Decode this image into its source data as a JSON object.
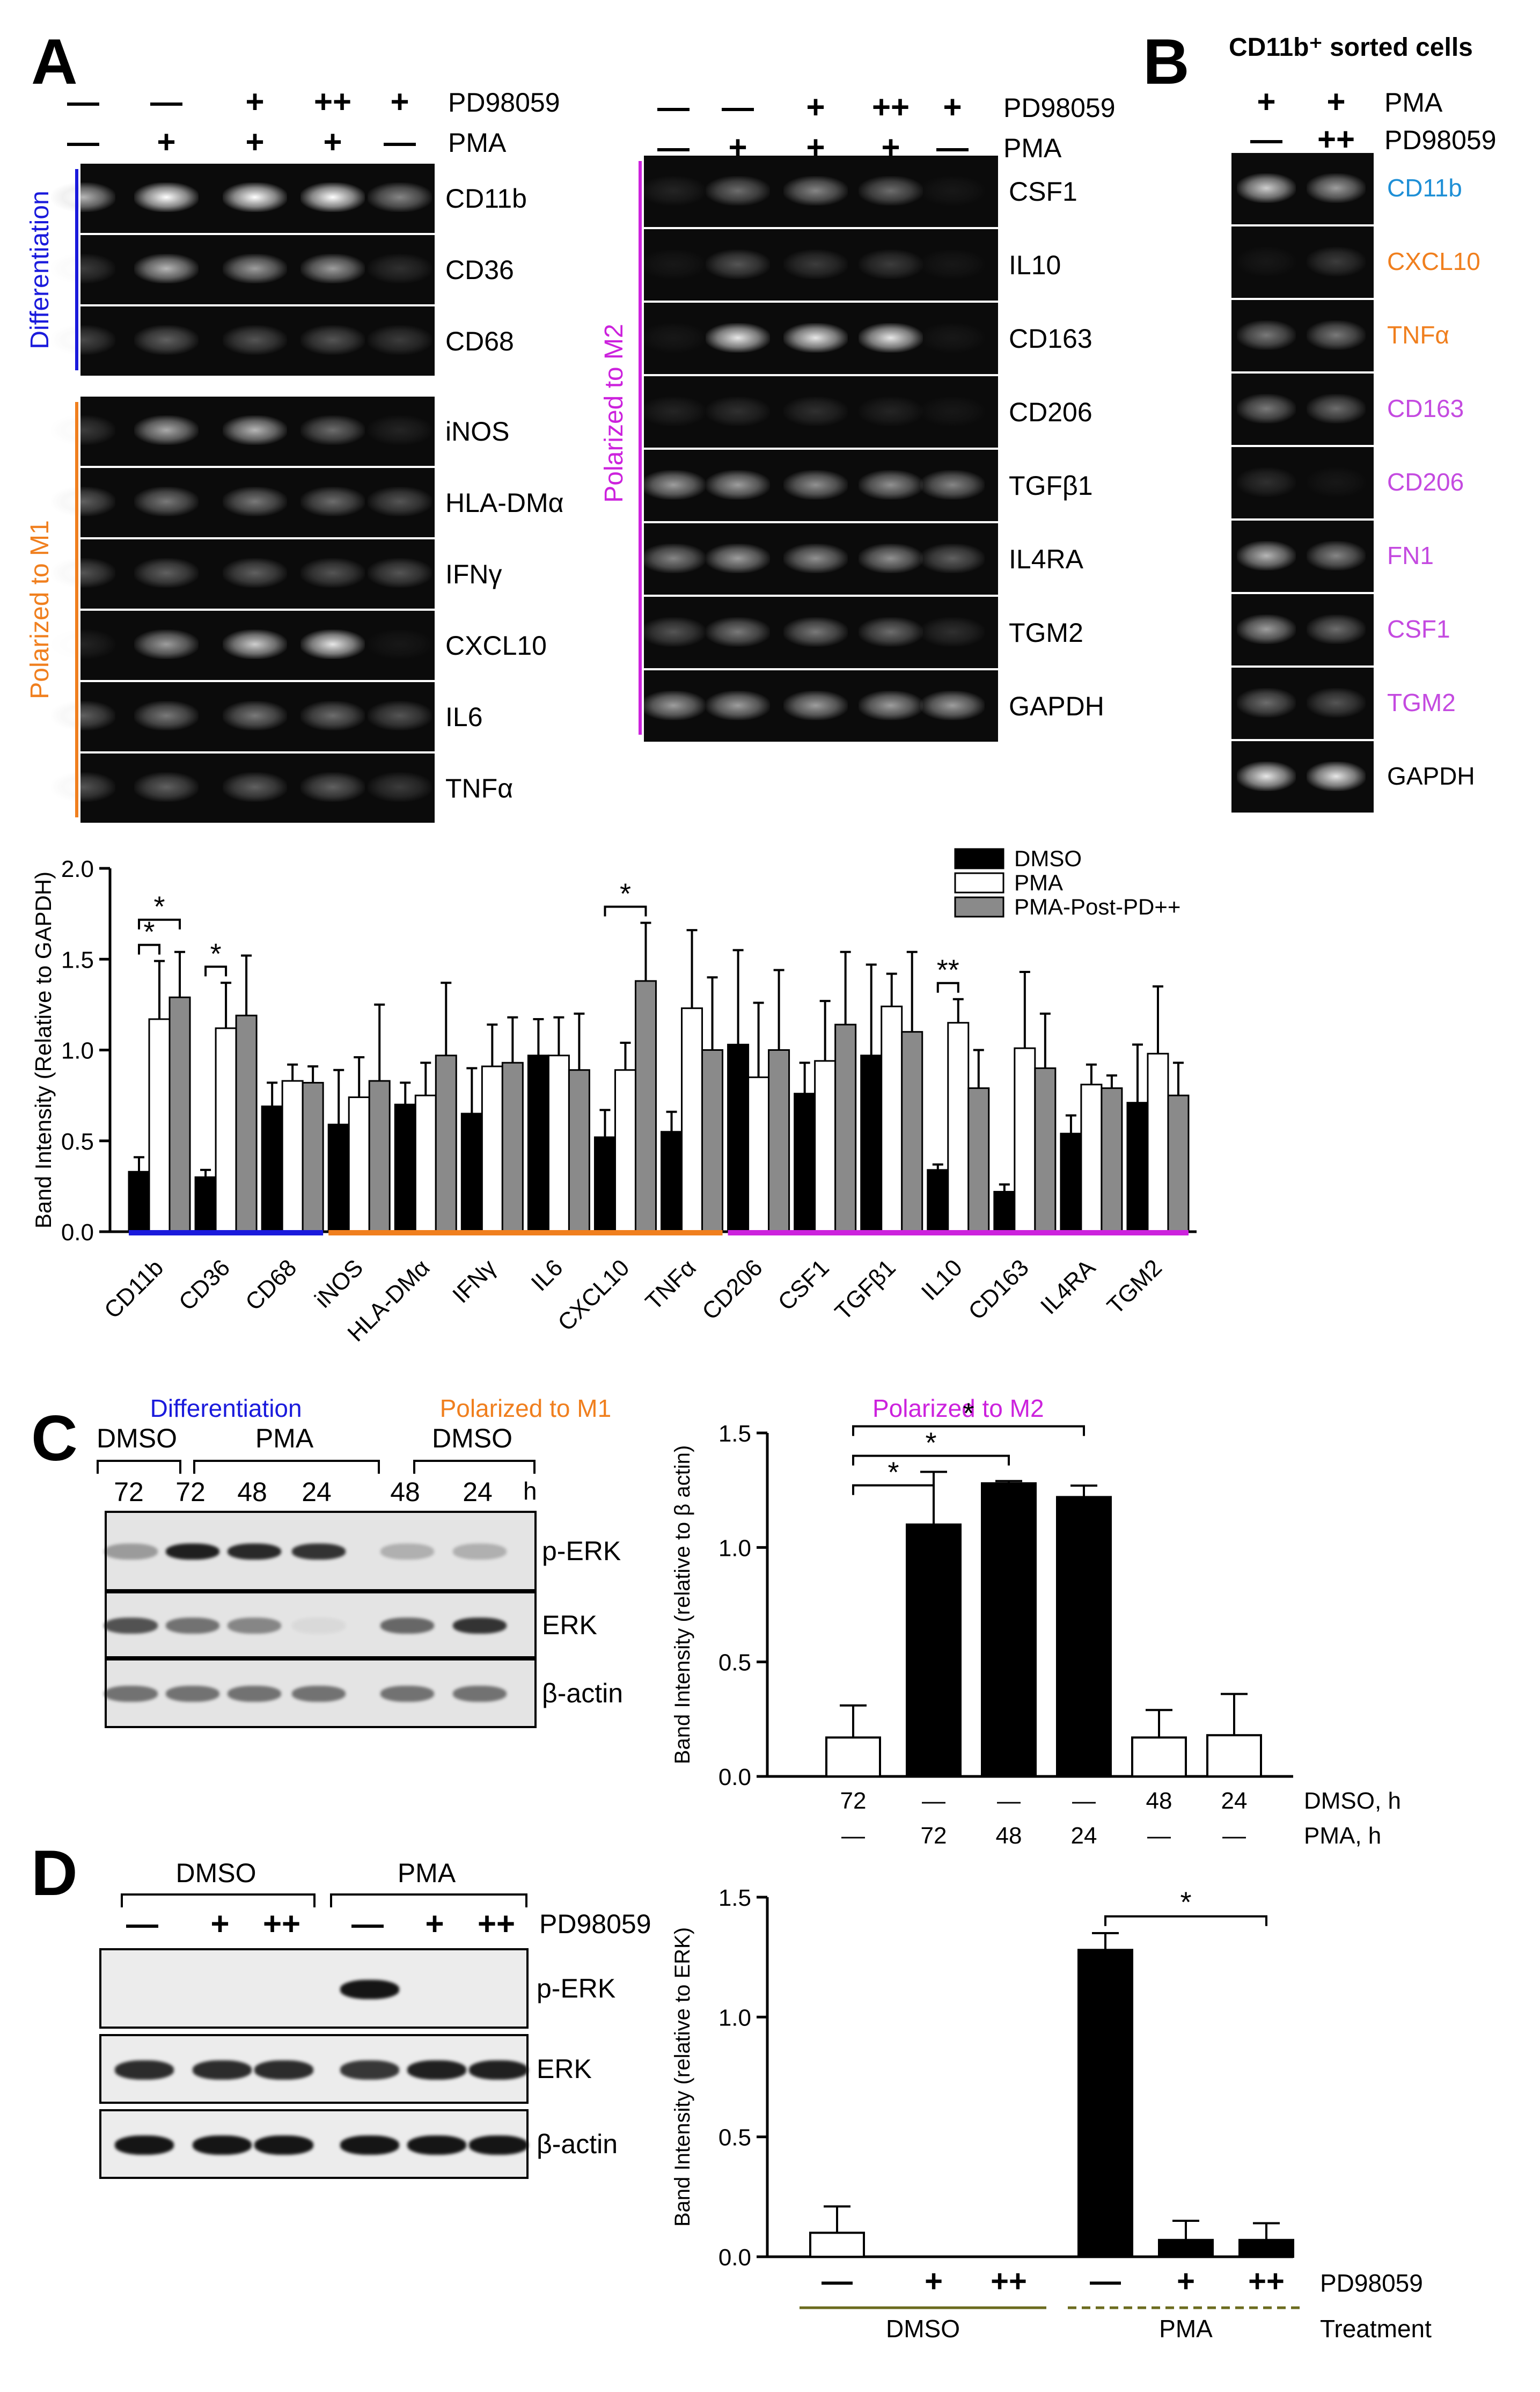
{
  "panels": {
    "A": {
      "label": "A",
      "gel_left": {
        "header_rows": [
          {
            "name": "PD98059",
            "marks": [
              "—",
              "—",
              "+",
              "++",
              "+"
            ]
          },
          {
            "name": "PMA",
            "marks": [
              "—",
              "+",
              "+",
              "+",
              "—"
            ]
          }
        ],
        "groups": [
          {
            "title": "Differentiation",
            "color": "#1a1adc",
            "genes": [
              "CD11b",
              "CD36",
              "CD68"
            ]
          },
          {
            "title": "Polarized to M1",
            "color": "#f07f1e",
            "genes": [
              "iNOS",
              "HLA-DMα",
              "IFNγ",
              "CXCL10",
              "IL6",
              "TNFα"
            ]
          }
        ]
      },
      "gel_right": {
        "header_rows": [
          {
            "name": "PD98059",
            "marks": [
              "—",
              "—",
              "+",
              "++",
              "+"
            ]
          },
          {
            "name": "PMA",
            "marks": [
              "—",
              "+",
              "+",
              "+",
              "—"
            ]
          }
        ],
        "group": {
          "title": "Polarized to M2",
          "color": "#cc22dd",
          "genes": [
            "CSF1",
            "IL10",
            "CD163",
            "CD206",
            "TGFβ1",
            "IL4RA",
            "TGM2"
          ]
        },
        "control": "GAPDH"
      }
    },
    "B": {
      "label": "B",
      "title": "CD11b⁺ sorted cells",
      "header_rows": [
        {
          "name": "PMA",
          "marks": [
            "+",
            "+"
          ]
        },
        {
          "name": "PD98059",
          "marks": [
            "—",
            "++"
          ]
        }
      ],
      "genes": [
        {
          "name": "CD11b",
          "color": "#1e8fd6"
        },
        {
          "name": "CXCL10",
          "color": "#f07f1e"
        },
        {
          "name": "TNFα",
          "color": "#f07f1e"
        },
        {
          "name": "CD163",
          "color": "#c44ae0"
        },
        {
          "name": "CD206",
          "color": "#c44ae0"
        },
        {
          "name": "FN1",
          "color": "#c44ae0"
        },
        {
          "name": "CSF1",
          "color": "#c44ae0"
        },
        {
          "name": "TGM2",
          "color": "#c44ae0"
        },
        {
          "name": "GAPDH",
          "color": "#000000"
        }
      ]
    },
    "C": {
      "label": "C",
      "blot_groups": [
        {
          "name": "DMSO",
          "times": [
            "72"
          ]
        },
        {
          "name": "PMA",
          "times": [
            "72",
            "48",
            "24"
          ]
        },
        {
          "name": "DMSO",
          "times": [
            "48",
            "24"
          ]
        }
      ],
      "time_unit": "h",
      "rows": [
        "p-ERK",
        "ERK",
        "β-actin"
      ]
    },
    "D": {
      "label": "D",
      "blot_groups": [
        {
          "name": "DMSO",
          "marks": [
            "—",
            "+",
            "++"
          ]
        },
        {
          "name": "PMA",
          "marks": [
            "—",
            "+",
            "++"
          ]
        }
      ],
      "row_label": "PD98059",
      "rows": [
        "p-ERK",
        "ERK",
        "β-actin"
      ]
    }
  },
  "chart_data": [
    {
      "id": "A-bar",
      "type": "bar",
      "ylabel": "Band Intensity  (Relative to GAPDH)",
      "ylim": [
        0,
        2.0
      ],
      "yticks": [
        "0.0",
        "0.5",
        "1.0",
        "1.5",
        "2.0"
      ],
      "categories": [
        "CD11b",
        "CD36",
        "CD68",
        "iNOS",
        "HLA-DMα",
        "IFNγ",
        "IL6",
        "CXCL10",
        "TNFα",
        "CD206",
        "CSF1",
        "TGFβ1",
        "IL10",
        "CD163",
        "IL4RA",
        "TGM2"
      ],
      "series": [
        {
          "name": "DMSO",
          "color": "#000000",
          "values": [
            0.33,
            0.3,
            0.69,
            0.59,
            0.7,
            0.65,
            0.97,
            0.52,
            0.55,
            1.03,
            0.76,
            0.97,
            0.34,
            0.22,
            0.54,
            0.71
          ],
          "errors": [
            0.08,
            0.04,
            0.13,
            0.3,
            0.12,
            0.25,
            0.2,
            0.15,
            0.11,
            0.52,
            0.17,
            0.5,
            0.03,
            0.04,
            0.1,
            0.32
          ]
        },
        {
          "name": "PMA",
          "color": "#ffffff",
          "values": [
            1.17,
            1.12,
            0.83,
            0.74,
            0.75,
            0.91,
            0.97,
            0.89,
            1.23,
            0.85,
            0.94,
            1.24,
            1.15,
            1.01,
            0.81,
            0.98
          ],
          "errors": [
            0.32,
            0.25,
            0.09,
            0.22,
            0.18,
            0.23,
            0.21,
            0.15,
            0.43,
            0.41,
            0.33,
            0.18,
            0.13,
            0.42,
            0.11,
            0.37
          ]
        },
        {
          "name": "PMA-Post-PD++",
          "color": "#8a8a8a",
          "values": [
            1.29,
            1.19,
            0.82,
            0.83,
            0.97,
            0.93,
            0.89,
            1.38,
            1.0,
            1.0,
            1.14,
            1.1,
            0.79,
            0.9,
            0.79,
            0.75
          ],
          "errors": [
            0.25,
            0.33,
            0.09,
            0.42,
            0.4,
            0.25,
            0.31,
            0.32,
            0.4,
            0.44,
            0.4,
            0.44,
            0.21,
            0.3,
            0.07,
            0.18
          ]
        }
      ],
      "group_bars": [
        {
          "title": "Differentiation",
          "color": "#1a1adc",
          "from": 0,
          "to": 2
        },
        {
          "title": "Polarized to M1",
          "color": "#f07f1e",
          "from": 3,
          "to": 8
        },
        {
          "title": "Polarized to M2",
          "color": "#cc22dd",
          "from": 9,
          "to": 15
        }
      ],
      "annotations": [
        {
          "text": "*",
          "cat": 0,
          "from": 0,
          "to": 1
        },
        {
          "text": "*",
          "cat": 0,
          "from": 0,
          "to": 2
        },
        {
          "text": "*",
          "cat": 1,
          "from": 0,
          "to": 1
        },
        {
          "text": "*",
          "cat": 7,
          "from": 0,
          "to": 2
        },
        {
          "text": "**",
          "cat": 12,
          "from": 0,
          "to": 1
        }
      ],
      "legend_position": "top-right"
    },
    {
      "id": "C-bar",
      "type": "bar",
      "ylabel": "Band Intensity (relative to β actin)",
      "ylim": [
        0,
        1.5
      ],
      "yticks": [
        "0.0",
        "0.5",
        "1.0",
        "1.5"
      ],
      "values": [
        0.17,
        1.1,
        1.28,
        1.22,
        0.17,
        0.18
      ],
      "errors": [
        0.14,
        0.23,
        0.01,
        0.05,
        0.12,
        0.18
      ],
      "fills": [
        "#ffffff",
        "#000000",
        "#000000",
        "#000000",
        "#ffffff",
        "#ffffff"
      ],
      "xrow1": [
        "72",
        "—",
        "—",
        "—",
        "48",
        "24"
      ],
      "xrow1_label": "DMSO, h",
      "xrow2": [
        "—",
        "72",
        "48",
        "24",
        "—",
        "—"
      ],
      "xrow2_label": "PMA, h",
      "annotations": [
        {
          "text": "*",
          "from": 0,
          "to": 1
        },
        {
          "text": "*",
          "from": 0,
          "to": 2
        },
        {
          "text": "*",
          "from": 0,
          "to": 3
        }
      ]
    },
    {
      "id": "D-bar",
      "type": "bar",
      "ylabel": "Band Intensity (relative to ERK)",
      "ylim": [
        0,
        1.5
      ],
      "yticks": [
        "0.0",
        "0.5",
        "1.0",
        "1.5"
      ],
      "values": [
        0.1,
        0,
        0,
        1.28,
        0.07,
        0.07
      ],
      "errors": [
        0.11,
        0,
        0,
        0.07,
        0.08,
        0.07
      ],
      "fills": [
        "#ffffff",
        "#ffffff",
        "#ffffff",
        "#000000",
        "#000000",
        "#000000"
      ],
      "xrow1": [
        "—",
        "+",
        "++",
        "—",
        "+",
        "++"
      ],
      "xrow1_label": "PD98059",
      "treatment_groups": [
        {
          "name": "DMSO",
          "from": 0,
          "to": 2,
          "color": "#6b6b1e",
          "dashed": false
        },
        {
          "name": "PMA",
          "from": 3,
          "to": 5,
          "color": "#6b6b1e",
          "dashed": true
        }
      ],
      "treatment_label": "Treatment",
      "annotations": [
        {
          "text": "*",
          "from": 3,
          "to": 5
        }
      ]
    }
  ]
}
